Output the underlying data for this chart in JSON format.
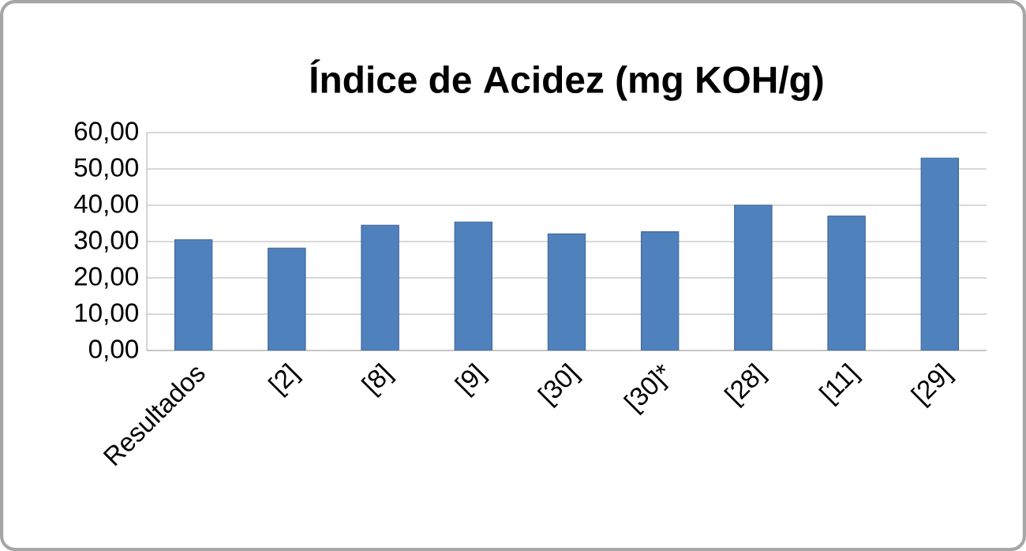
{
  "chart_data": {
    "type": "bar",
    "title": "Índice de Acidez (mg KOH/g)",
    "categories": [
      "Resultados",
      "[2]",
      "[8]",
      "[9]",
      "[30]",
      "[30]*",
      "[28]",
      "[11]",
      "[29]"
    ],
    "values": [
      30.5,
      28.2,
      34.5,
      35.4,
      32.1,
      32.7,
      40.0,
      37.0,
      53.0
    ],
    "color": "#4f81bd",
    "ylim": [
      0,
      60
    ],
    "yticks": [
      {
        "value": 0,
        "label": "0,00"
      },
      {
        "value": 10,
        "label": "10,00"
      },
      {
        "value": 20,
        "label": "20,00"
      },
      {
        "value": 30,
        "label": "30,00"
      },
      {
        "value": 40,
        "label": "40,00"
      },
      {
        "value": 50,
        "label": "50,00"
      },
      {
        "value": 60,
        "label": "60,00"
      }
    ],
    "grid": "y"
  }
}
